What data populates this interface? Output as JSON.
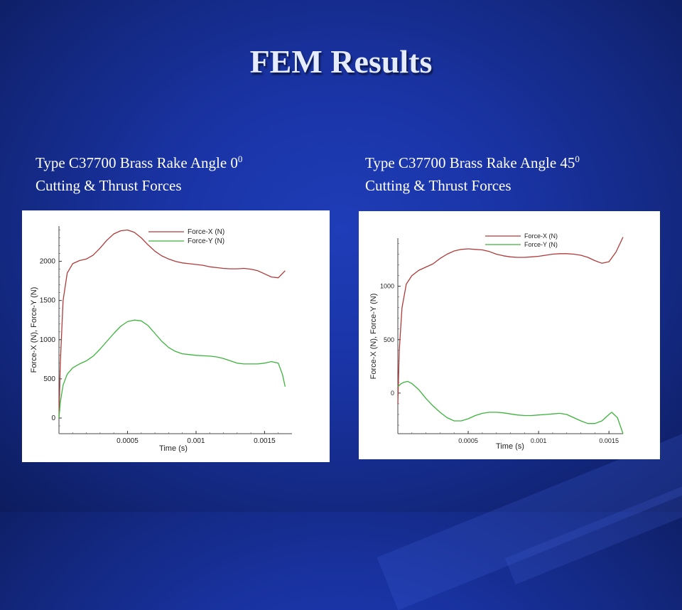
{
  "slide": {
    "title": "FEM Results",
    "captions": [
      {
        "line1": "Type C37700 Brass Rake Angle  0",
        "sup": "0",
        "line2": "Cutting & Thrust Forces"
      },
      {
        "line1": "Type C37700 Brass Rake Angle  45",
        "sup": "0",
        "line2": "Cutting & Thrust Forces"
      }
    ]
  },
  "colors": {
    "force_x": "#b03a3a",
    "force_y": "#3cb43c"
  },
  "chart_data": [
    {
      "type": "line",
      "xlabel": "Time (s)",
      "ylabel": "Force-X (N), Force-Y (N)",
      "xlim": [
        0,
        0.0017
      ],
      "ylim": [
        -200,
        2450
      ],
      "xticks": [
        {
          "value": 0.0005,
          "label": "0.0005"
        },
        {
          "value": 0.001,
          "label": "0.001"
        },
        {
          "value": 0.0015,
          "label": "0.0015"
        }
      ],
      "yticks": [
        {
          "value": 0,
          "label": "0"
        },
        {
          "value": 500,
          "label": "500"
        },
        {
          "value": 1000,
          "label": "1000"
        },
        {
          "value": 1500,
          "label": "1500"
        },
        {
          "value": 2000,
          "label": "2000"
        }
      ],
      "legend_position": "top-right",
      "series": [
        {
          "name": "Force-X (N)",
          "color_key": "force_x",
          "x": [
            0,
            1e-05,
            3e-05,
            6e-05,
            0.0001,
            0.00015,
            0.0002,
            0.00025,
            0.0003,
            0.00035,
            0.0004,
            0.00045,
            0.0005,
            0.00055,
            0.0006,
            0.00065,
            0.0007,
            0.00075,
            0.0008,
            0.00085,
            0.0009,
            0.00095,
            0.001,
            0.00105,
            0.0011,
            0.00115,
            0.0012,
            0.00125,
            0.0013,
            0.00135,
            0.0014,
            0.00145,
            0.0015,
            0.00155,
            0.0016,
            0.00165
          ],
          "y": [
            0,
            700,
            1500,
            1850,
            1970,
            2010,
            2030,
            2080,
            2170,
            2270,
            2350,
            2390,
            2400,
            2370,
            2300,
            2210,
            2130,
            2070,
            2030,
            2000,
            1980,
            1970,
            1960,
            1950,
            1930,
            1920,
            1910,
            1905,
            1905,
            1910,
            1900,
            1880,
            1840,
            1800,
            1790,
            1880
          ]
        },
        {
          "name": "Force-Y (N)",
          "color_key": "force_y",
          "x": [
            0,
            1e-05,
            3e-05,
            6e-05,
            0.0001,
            0.00015,
            0.0002,
            0.00025,
            0.0003,
            0.00035,
            0.0004,
            0.00045,
            0.0005,
            0.00055,
            0.0006,
            0.00065,
            0.0007,
            0.00075,
            0.0008,
            0.00085,
            0.0009,
            0.00095,
            0.001,
            0.00105,
            0.0011,
            0.00115,
            0.0012,
            0.00125,
            0.0013,
            0.00135,
            0.0014,
            0.00145,
            0.0015,
            0.00155,
            0.0016,
            0.00163,
            0.00165
          ],
          "y": [
            0,
            200,
            420,
            560,
            640,
            690,
            730,
            790,
            880,
            980,
            1080,
            1170,
            1230,
            1250,
            1240,
            1180,
            1080,
            980,
            900,
            850,
            820,
            810,
            800,
            795,
            790,
            780,
            760,
            730,
            700,
            690,
            690,
            690,
            700,
            720,
            700,
            560,
            400
          ]
        }
      ]
    },
    {
      "type": "line",
      "xlabel": "Time (s)",
      "ylabel": "Force-X (N), Force-Y (N)",
      "xlim": [
        0,
        0.0016
      ],
      "ylim": [
        -380,
        1450
      ],
      "xticks": [
        {
          "value": 0.0005,
          "label": "0.0005"
        },
        {
          "value": 0.001,
          "label": "0.001"
        },
        {
          "value": 0.0015,
          "label": "0.0015"
        }
      ],
      "yticks": [
        {
          "value": 0,
          "label": "0"
        },
        {
          "value": 500,
          "label": "500"
        },
        {
          "value": 1000,
          "label": "1000"
        }
      ],
      "legend_position": "top-right",
      "series": [
        {
          "name": "Force-X (N)",
          "color_key": "force_x",
          "x": [
            0,
            1e-05,
            3e-05,
            6e-05,
            0.0001,
            0.00015,
            0.0002,
            0.00025,
            0.0003,
            0.00035,
            0.0004,
            0.00045,
            0.0005,
            0.00055,
            0.0006,
            0.00065,
            0.0007,
            0.00075,
            0.0008,
            0.00085,
            0.0009,
            0.00095,
            0.001,
            0.00105,
            0.0011,
            0.00115,
            0.0012,
            0.00125,
            0.0013,
            0.00135,
            0.0014,
            0.00145,
            0.0015,
            0.00155,
            0.0016
          ],
          "y": [
            -100,
            400,
            800,
            1020,
            1100,
            1150,
            1180,
            1210,
            1260,
            1300,
            1330,
            1345,
            1350,
            1345,
            1340,
            1325,
            1300,
            1285,
            1275,
            1270,
            1270,
            1275,
            1280,
            1290,
            1300,
            1305,
            1305,
            1300,
            1290,
            1270,
            1240,
            1215,
            1230,
            1320,
            1460
          ]
        },
        {
          "name": "Force-Y (N)",
          "color_key": "force_y",
          "x": [
            0,
            2e-05,
            4e-05,
            7e-05,
            0.0001,
            0.00015,
            0.0002,
            0.00025,
            0.0003,
            0.00035,
            0.0004,
            0.00045,
            0.0005,
            0.00055,
            0.0006,
            0.00065,
            0.0007,
            0.00075,
            0.0008,
            0.00085,
            0.0009,
            0.00095,
            0.001,
            0.00105,
            0.0011,
            0.00115,
            0.0012,
            0.00125,
            0.0013,
            0.00135,
            0.0014,
            0.00145,
            0.0015,
            0.00152,
            0.00156,
            0.0016
          ],
          "y": [
            60,
            85,
            100,
            110,
            90,
            30,
            -50,
            -120,
            -180,
            -230,
            -260,
            -260,
            -240,
            -210,
            -190,
            -180,
            -180,
            -185,
            -195,
            -205,
            -210,
            -210,
            -205,
            -200,
            -195,
            -190,
            -200,
            -230,
            -260,
            -285,
            -285,
            -260,
            -200,
            -180,
            -230,
            -380
          ]
        }
      ]
    }
  ]
}
